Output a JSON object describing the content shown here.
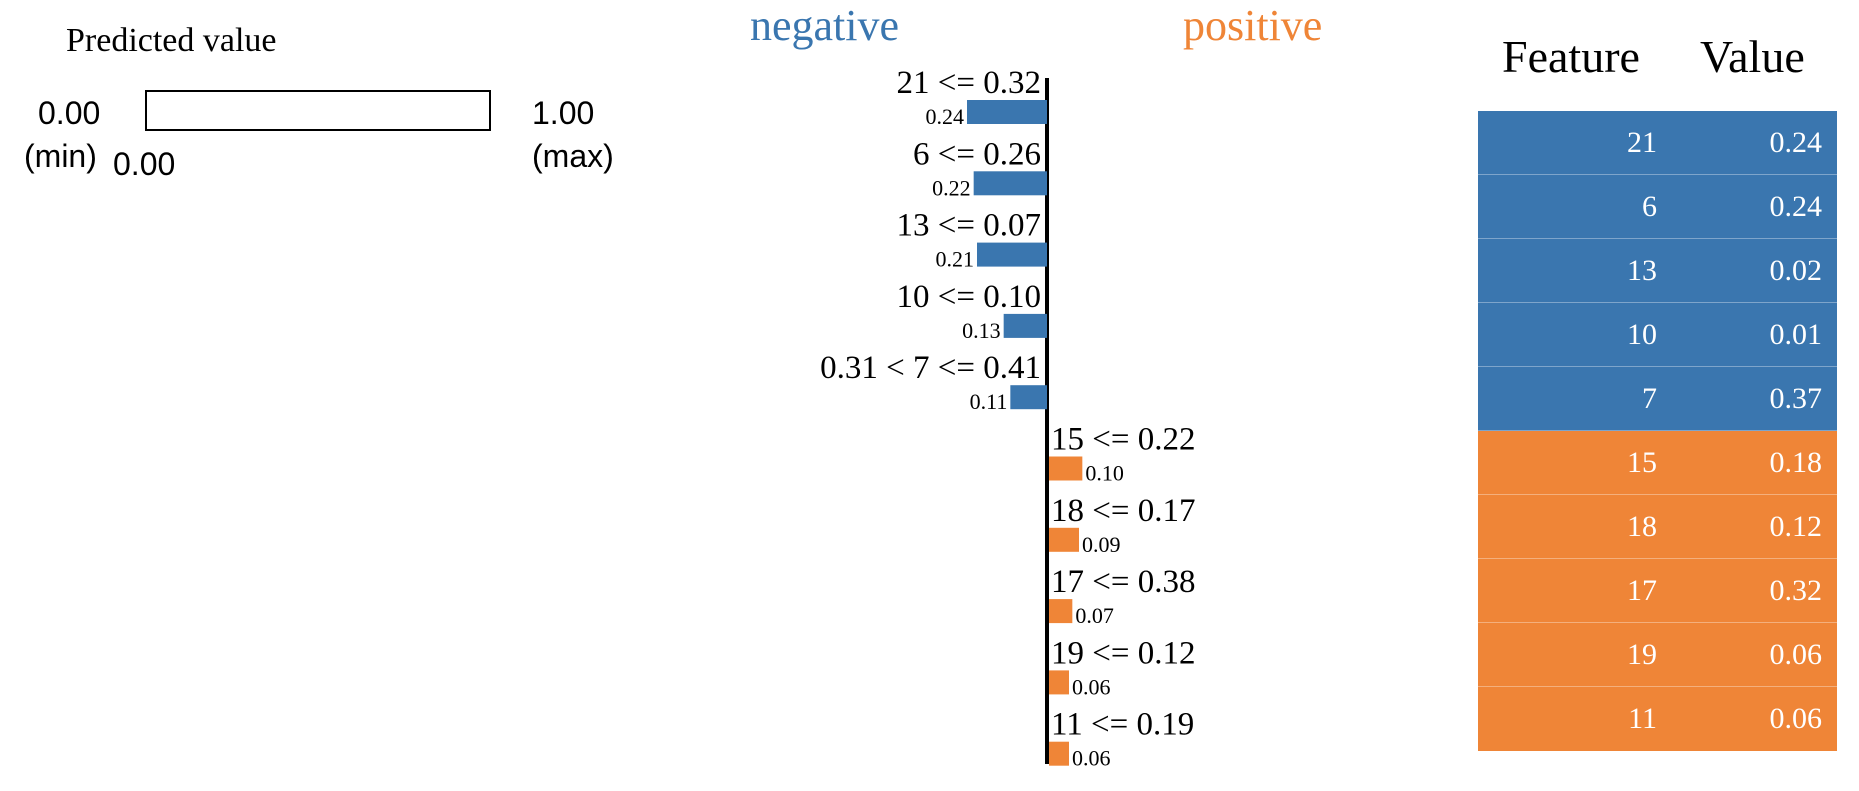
{
  "predicted": {
    "title": "Predicted value",
    "min_value": "0.00",
    "min_label": "(min)",
    "max_value": "1.00",
    "max_label": "(max)",
    "current_value": "0.00",
    "current_fraction": 0.0
  },
  "headings": {
    "negative": "negative",
    "positive": "positive"
  },
  "colors": {
    "negative": "#3a76af",
    "positive": "#ef8537"
  },
  "chart_data": {
    "type": "bar",
    "orientation": "horizontal",
    "categories": [
      "21 <= 0.32",
      "6 <= 0.26",
      "13 <= 0.07",
      "10 <= 0.10",
      "0.31 < 7 <= 0.41",
      "15 <= 0.22",
      "18 <= 0.17",
      "17 <= 0.38",
      "19 <= 0.12",
      "11 <= 0.19"
    ],
    "values": [
      -0.24,
      -0.22,
      -0.21,
      -0.13,
      -0.11,
      0.1,
      0.09,
      0.07,
      0.06,
      0.06
    ],
    "value_labels": [
      "0.24",
      "0.22",
      "0.21",
      "0.13",
      "0.11",
      "0.10",
      "0.09",
      "0.07",
      "0.06",
      "0.06"
    ],
    "xlim": [
      -0.24,
      0.24
    ],
    "grid": false
  },
  "table": {
    "headers": {
      "feature": "Feature",
      "value": "Value"
    },
    "rows": [
      {
        "feature": "21",
        "value": "0.24",
        "class": "negative"
      },
      {
        "feature": "6",
        "value": "0.24",
        "class": "negative"
      },
      {
        "feature": "13",
        "value": "0.02",
        "class": "negative"
      },
      {
        "feature": "10",
        "value": "0.01",
        "class": "negative"
      },
      {
        "feature": "7",
        "value": "0.37",
        "class": "negative"
      },
      {
        "feature": "15",
        "value": "0.18",
        "class": "positive"
      },
      {
        "feature": "18",
        "value": "0.12",
        "class": "positive"
      },
      {
        "feature": "17",
        "value": "0.32",
        "class": "positive"
      },
      {
        "feature": "19",
        "value": "0.06",
        "class": "positive"
      },
      {
        "feature": "11",
        "value": "0.06",
        "class": "positive"
      }
    ]
  }
}
